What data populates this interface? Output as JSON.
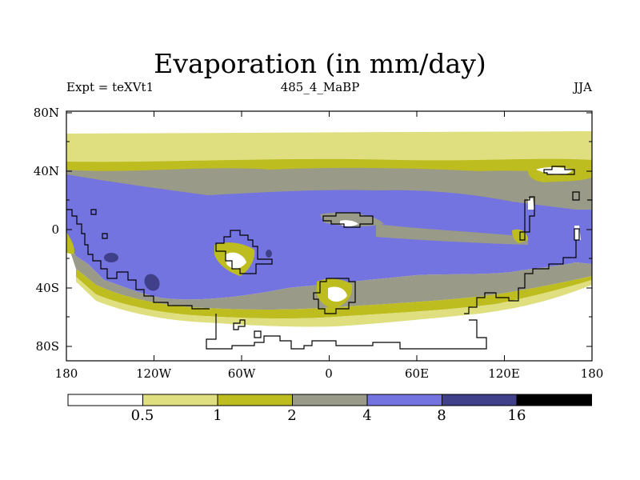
{
  "title": "Evaporation (in mm/day)",
  "left_label": "Expt = teXVt1",
  "center_label": "485_4_MaBP",
  "right_label": "JJA",
  "y_ticks": [
    "80N",
    "40N",
    "0",
    "40S",
    "80S"
  ],
  "x_ticks": [
    "180",
    "120W",
    "60W",
    "0",
    "60E",
    "120E",
    "180"
  ],
  "colorbar": {
    "levels": [
      "0.5",
      "1",
      "2",
      "4",
      "8",
      "16"
    ],
    "colors": [
      "#ffffff",
      "#dfdf80",
      "#bdbd20",
      "#9a9a88",
      "#7474e0",
      "#40408a",
      "#000000"
    ]
  },
  "chart_data": {
    "type": "filled-contour-map",
    "variable": "Evaporation",
    "units": "mm/day",
    "season": "JJA",
    "experiment": "teXVt1",
    "period": "485_4_MaBP",
    "lon_range": [
      -180,
      180
    ],
    "lat_range": [
      -90,
      90
    ],
    "contour_levels": [
      0.5,
      1,
      2,
      4,
      8,
      16
    ],
    "bands": [
      {
        "lat_from": 90,
        "lat_to": 65,
        "category": "<0.5"
      },
      {
        "lat_from": 65,
        "lat_to": 48,
        "category": "0.5-1"
      },
      {
        "lat_from": 48,
        "lat_to": 44,
        "category": "1-2"
      },
      {
        "lat_from": 44,
        "lat_to": 30,
        "category": "2-4"
      },
      {
        "lat_from": 30,
        "lat_to": -25,
        "category": "4-8"
      },
      {
        "lat_from": -25,
        "lat_to": -45,
        "category": "2-4"
      },
      {
        "lat_from": -45,
        "lat_to": -55,
        "category": "1-2"
      },
      {
        "lat_from": -55,
        "lat_to": -62,
        "category": "0.5-1"
      },
      {
        "lat_from": -62,
        "lat_to": -90,
        "category": "<0.5"
      }
    ]
  }
}
